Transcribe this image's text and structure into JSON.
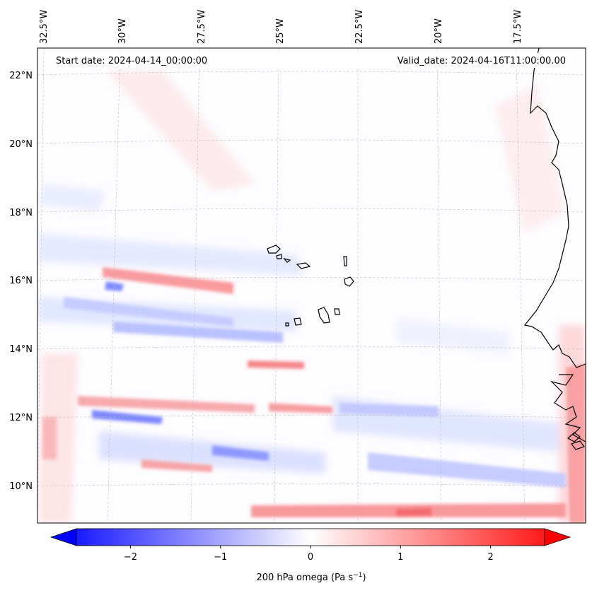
{
  "header": {
    "start_date": "Start date: 2024-04-14_00:00:00",
    "valid_date": "Valid_date: 2024-04-16T11:00:00.00"
  },
  "map": {
    "field": "200 hPa omega",
    "lon_labels": [
      "32.5°W",
      "30°W",
      "27.5°W",
      "25°W",
      "22.5°W",
      "20°W",
      "17.5°W"
    ],
    "lat_labels": [
      "22°N",
      "20°N",
      "18°N",
      "16°N",
      "14°N",
      "12°N",
      "10°N"
    ]
  },
  "colorbar": {
    "label_main": "200 hPa omega (Pa s",
    "label_sup": "−1",
    "label_end": ")",
    "ticks": [
      "−2",
      "−1",
      "0",
      "1",
      "2"
    ],
    "tick_values": [
      -2,
      -1,
      0,
      1,
      2
    ],
    "range": [
      -2.6,
      2.6
    ],
    "colors": {
      "negative": "#0000ff",
      "zero": "#ffffff",
      "positive": "#ff0000"
    }
  }
}
